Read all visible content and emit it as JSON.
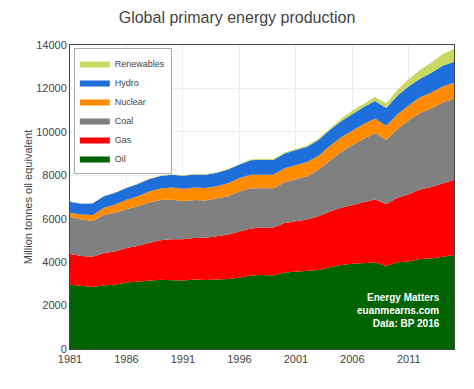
{
  "chart_data": {
    "type": "area",
    "stacked": true,
    "title": "Global primary energy production",
    "ylabel": "Million tonnes oil equivalent",
    "x": [
      1981,
      1982,
      1983,
      1984,
      1985,
      1986,
      1987,
      1988,
      1989,
      1990,
      1991,
      1992,
      1993,
      1994,
      1995,
      1996,
      1997,
      1998,
      1999,
      2000,
      2001,
      2002,
      2003,
      2004,
      2005,
      2006,
      2007,
      2008,
      2009,
      2010,
      2011,
      2012,
      2013,
      2014,
      2015
    ],
    "series": [
      {
        "name": "Oil",
        "color": "#006400",
        "values": [
          2960,
          2900,
          2860,
          2940,
          2960,
          3060,
          3100,
          3170,
          3190,
          3170,
          3160,
          3200,
          3180,
          3200,
          3220,
          3280,
          3380,
          3410,
          3380,
          3520,
          3550,
          3580,
          3640,
          3760,
          3870,
          3930,
          3960,
          3980,
          3820,
          3990,
          4030,
          4140,
          4170,
          4250,
          4330
        ]
      },
      {
        "name": "Gas",
        "color": "#ff0000",
        "values": [
          1420,
          1380,
          1390,
          1480,
          1530,
          1590,
          1660,
          1730,
          1820,
          1880,
          1890,
          1910,
          1940,
          1990,
          2050,
          2130,
          2170,
          2180,
          2210,
          2280,
          2340,
          2380,
          2470,
          2570,
          2630,
          2690,
          2790,
          2900,
          2860,
          2980,
          3100,
          3200,
          3290,
          3390,
          3470
        ]
      },
      {
        "name": "Coal",
        "color": "#808080",
        "values": [
          1700,
          1680,
          1650,
          1750,
          1780,
          1790,
          1810,
          1850,
          1850,
          1840,
          1760,
          1750,
          1720,
          1730,
          1760,
          1840,
          1850,
          1810,
          1810,
          1880,
          1940,
          1990,
          2140,
          2350,
          2570,
          2770,
          2940,
          3070,
          2950,
          3160,
          3410,
          3530,
          3630,
          3710,
          3720
        ]
      },
      {
        "name": "Nuclear",
        "color": "#ff8c00",
        "values": [
          200,
          230,
          270,
          330,
          390,
          430,
          460,
          500,
          530,
          550,
          570,
          580,
          580,
          580,
          600,
          620,
          630,
          630,
          620,
          640,
          650,
          660,
          650,
          670,
          680,
          680,
          670,
          670,
          650,
          680,
          690,
          720,
          720,
          740,
          740
        ]
      },
      {
        "name": "Hydro",
        "color": "#1e6fdb",
        "values": [
          500,
          500,
          530,
          540,
          540,
          550,
          570,
          570,
          580,
          590,
          600,
          600,
          600,
          620,
          640,
          630,
          660,
          690,
          680,
          680,
          690,
          700,
          720,
          730,
          740,
          770,
          790,
          800,
          820,
          860,
          870,
          860,
          910,
          950,
          970
        ]
      },
      {
        "name": "Renewables",
        "color": "#c8d860",
        "values": [
          10,
          10,
          10,
          10,
          10,
          10,
          15,
          15,
          15,
          20,
          20,
          20,
          25,
          25,
          30,
          30,
          35,
          40,
          45,
          50,
          55,
          65,
          75,
          90,
          110,
          130,
          160,
          190,
          220,
          270,
          330,
          400,
          470,
          540,
          600
        ]
      }
    ],
    "xlim": [
      1981,
      2015
    ],
    "xticks": [
      1981,
      1986,
      1991,
      1996,
      2001,
      2006,
      2011
    ],
    "ylim": [
      0,
      14000
    ],
    "yticks": [
      0,
      2000,
      4000,
      6000,
      8000,
      10000,
      12000,
      14000
    ],
    "grid": true,
    "legend": "upper left",
    "annotations": [
      "Energy Matters",
      "euanmearns.com",
      "Data: BP 2016"
    ]
  }
}
